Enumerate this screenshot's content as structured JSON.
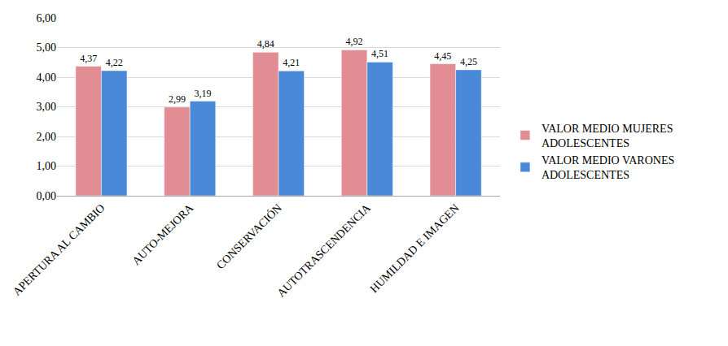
{
  "chart_data": {
    "type": "bar",
    "categories": [
      "APERTURA AL CAMBIO",
      "AUTO-MEJORA",
      "CONSERVACIÓN",
      "AUTOTRASCENDENCIA",
      "HUMILDAD E IMAGEN"
    ],
    "series": [
      {
        "name": "VALOR MEDIO MUJERES ADOLESCENTES",
        "color": "#e28c93",
        "values": [
          4.37,
          2.99,
          4.84,
          4.92,
          4.45
        ],
        "value_labels": [
          "4,37",
          "2,99",
          "4,84",
          "4,92",
          "4,45"
        ]
      },
      {
        "name": "VALOR MEDIO VARONES ADOLESCENTES",
        "color": "#4a88d8",
        "values": [
          4.22,
          3.19,
          4.21,
          4.51,
          4.25
        ],
        "value_labels": [
          "4,22",
          "3,19",
          "4,21",
          "4,51",
          "4,25"
        ]
      }
    ],
    "ylim": [
      0,
      6
    ],
    "yticks": [
      {
        "value": 0,
        "label": "0,00"
      },
      {
        "value": 1,
        "label": "1,00"
      },
      {
        "value": 2,
        "label": "2,00"
      },
      {
        "value": 3,
        "label": "3,00"
      },
      {
        "value": 4,
        "label": "4,00"
      },
      {
        "value": 5,
        "label": "5,00"
      },
      {
        "value": 6,
        "label": "6,00"
      }
    ],
    "grid": true,
    "legend": "right",
    "data_labels": true
  }
}
